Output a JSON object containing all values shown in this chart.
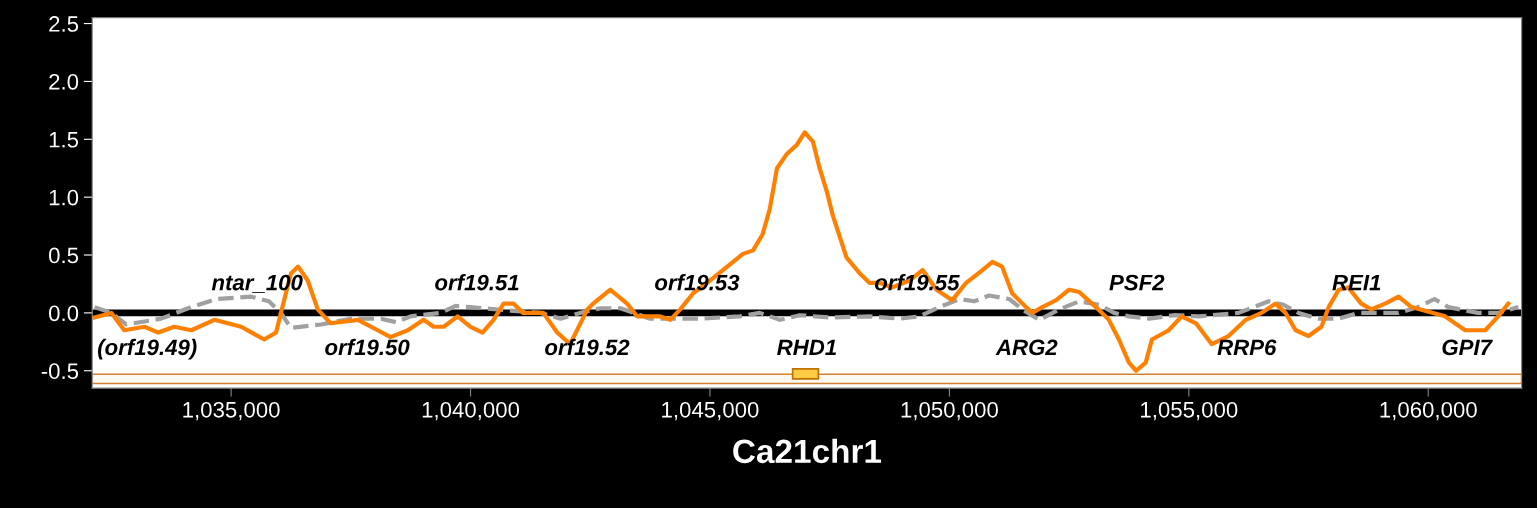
{
  "chart_data": {
    "type": "line",
    "xlabel": "Ca21chr1",
    "xlim": [
      1032100,
      1061950
    ],
    "ylim": [
      -0.65,
      2.55
    ],
    "xticks": [
      {
        "value": 1035000,
        "label": "1,035,000"
      },
      {
        "value": 1040000,
        "label": "1,040,000"
      },
      {
        "value": 1045000,
        "label": "1,045,000"
      },
      {
        "value": 1050000,
        "label": "1,050,000"
      },
      {
        "value": 1055000,
        "label": "1,055,000"
      },
      {
        "value": 1060000,
        "label": "1,060,000"
      }
    ],
    "yticks": [
      {
        "value": -0.5,
        "label": "-0.5"
      },
      {
        "value": 0,
        "label": "0.0"
      },
      {
        "value": 0.5,
        "label": "0.5"
      },
      {
        "value": 1.0,
        "label": "1.0"
      },
      {
        "value": 1.5,
        "label": "1.5"
      },
      {
        "value": 2.0,
        "label": "2.0"
      },
      {
        "value": 2.5,
        "label": "2.5"
      }
    ],
    "grid": false,
    "legend": false,
    "marker": "none",
    "series": [
      {
        "color": "#a0a0a0",
        "line_style": "dashed",
        "x": [
          1032150,
          1032500,
          1032810,
          1033540,
          1034170,
          1034690,
          1035420,
          1035790,
          1036040,
          1036250,
          1036880,
          1037500,
          1038130,
          1038440,
          1038750,
          1039380,
          1039690,
          1040000,
          1040830,
          1041460,
          1041880,
          1042290,
          1042710,
          1043130,
          1043750,
          1044170,
          1044790,
          1045620,
          1046040,
          1046460,
          1046880,
          1047500,
          1048330,
          1048960,
          1049380,
          1049790,
          1050210,
          1050520,
          1050830,
          1051250,
          1051560,
          1051880,
          1052290,
          1052710,
          1053130,
          1053440,
          1053750,
          1054170,
          1054690,
          1055210,
          1056040,
          1056670,
          1056980,
          1057290,
          1057710,
          1058130,
          1058540,
          1059380,
          1059790,
          1060130,
          1060420,
          1061040,
          1061460,
          1061880
        ],
        "values": [
          0.05,
          0.0,
          -0.1,
          -0.05,
          0.05,
          0.12,
          0.14,
          0.1,
          0.0,
          -0.13,
          -0.1,
          -0.05,
          -0.05,
          -0.08,
          -0.03,
          0.0,
          0.06,
          0.05,
          0.02,
          0.0,
          -0.05,
          0.0,
          0.04,
          0.04,
          -0.05,
          -0.05,
          -0.05,
          -0.03,
          0.0,
          -0.06,
          -0.02,
          -0.04,
          -0.03,
          -0.05,
          -0.03,
          0.05,
          0.12,
          0.1,
          0.15,
          0.12,
          0.02,
          -0.06,
          0.03,
          0.1,
          0.07,
          0.0,
          -0.03,
          -0.05,
          -0.02,
          -0.03,
          0.0,
          0.1,
          0.07,
          0.0,
          -0.05,
          -0.05,
          0.0,
          0.0,
          0.05,
          0.12,
          0.05,
          0.0,
          0.0,
          0.05
        ]
      },
      {
        "color": "#ff8000",
        "line_style": "solid",
        "x": [
          1032150,
          1032500,
          1032770,
          1033190,
          1033480,
          1033810,
          1034170,
          1034650,
          1035210,
          1035690,
          1035940,
          1036040,
          1036250,
          1036400,
          1036600,
          1036810,
          1037080,
          1037650,
          1038060,
          1038330,
          1038690,
          1039020,
          1039230,
          1039440,
          1039730,
          1040000,
          1040250,
          1040480,
          1040690,
          1040900,
          1041100,
          1041310,
          1041520,
          1041810,
          1042080,
          1042440,
          1042560,
          1042920,
          1043270,
          1043480,
          1043960,
          1044170,
          1044380,
          1044650,
          1044940,
          1045270,
          1045690,
          1045900,
          1046100,
          1046250,
          1046400,
          1046600,
          1046810,
          1046980,
          1047150,
          1047290,
          1047440,
          1047560,
          1047850,
          1048130,
          1048330,
          1048540,
          1048810,
          1049170,
          1049440,
          1049730,
          1050060,
          1050350,
          1050690,
          1050900,
          1051100,
          1051310,
          1051600,
          1051730,
          1051940,
          1052230,
          1052500,
          1052710,
          1053060,
          1053330,
          1053540,
          1053750,
          1053900,
          1054100,
          1054230,
          1054580,
          1054850,
          1055150,
          1055480,
          1055830,
          1056190,
          1056520,
          1056810,
          1057020,
          1057230,
          1057500,
          1057770,
          1057920,
          1058130,
          1058330,
          1058600,
          1058810,
          1059100,
          1059380,
          1059650,
          1060350,
          1060770,
          1061190,
          1061460,
          1061670
        ],
        "values": [
          -0.04,
          0.0,
          -0.15,
          -0.12,
          -0.17,
          -0.12,
          -0.15,
          -0.06,
          -0.12,
          -0.23,
          -0.17,
          0.0,
          0.34,
          0.4,
          0.28,
          0.03,
          -0.09,
          -0.06,
          -0.15,
          -0.21,
          -0.15,
          -0.06,
          -0.12,
          -0.12,
          -0.03,
          -0.12,
          -0.17,
          -0.06,
          0.08,
          0.08,
          0.0,
          0.0,
          0.0,
          -0.17,
          -0.27,
          0.03,
          0.08,
          0.2,
          0.08,
          -0.03,
          -0.03,
          -0.06,
          0.03,
          0.17,
          0.26,
          0.37,
          0.51,
          0.54,
          0.68,
          0.9,
          1.25,
          1.37,
          1.45,
          1.56,
          1.48,
          1.25,
          1.05,
          0.85,
          0.48,
          0.34,
          0.26,
          0.26,
          0.22,
          0.28,
          0.37,
          0.2,
          0.11,
          0.26,
          0.37,
          0.44,
          0.4,
          0.17,
          0.05,
          0.0,
          0.05,
          0.11,
          0.2,
          0.18,
          0.05,
          -0.06,
          -0.23,
          -0.43,
          -0.5,
          -0.43,
          -0.23,
          -0.15,
          -0.03,
          -0.09,
          -0.27,
          -0.2,
          -0.06,
          0.0,
          0.08,
          0.0,
          -0.15,
          -0.2,
          -0.12,
          0.05,
          0.2,
          0.22,
          0.08,
          0.03,
          0.08,
          0.14,
          0.05,
          -0.03,
          -0.15,
          -0.15,
          -0.03,
          0.08
        ]
      }
    ],
    "ref_lines": [
      {
        "axis": "y",
        "value": 0,
        "color": "#000000"
      }
    ],
    "bands": [
      {
        "axis": "y",
        "from": -0.61,
        "to": -0.53,
        "color": "#d08030"
      }
    ],
    "annotations": [
      "(orf19.49)",
      "ntar_100",
      "orf19.50",
      "orf19.51",
      "orf19.52",
      "orf19.53",
      "RHD1",
      "orf19.55",
      "ARG2",
      "PSF2",
      "RRP6",
      "REI1",
      "GPI7"
    ]
  }
}
